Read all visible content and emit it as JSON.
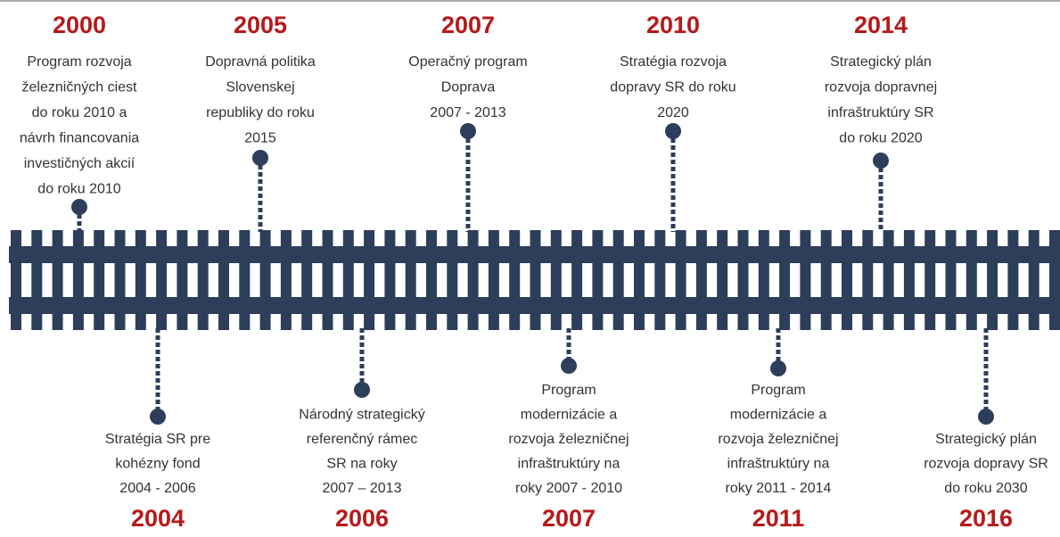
{
  "top": [
    {
      "year": "2000",
      "lines": [
        "Program rozvoja",
        "železničných ciest",
        "do roku 2010 a",
        "návrh financovania",
        "investičných akcií",
        "do roku 2010"
      ]
    },
    {
      "year": "2005",
      "lines": [
        "Dopravná politika",
        "Slovenskej",
        "republiky do roku",
        "2015"
      ]
    },
    {
      "year": "2007",
      "lines": [
        "Operačný program",
        "Doprava",
        "2007 - 2013"
      ]
    },
    {
      "year": "2010",
      "lines": [
        "Stratégia rozvoja",
        "dopravy SR do roku",
        "2020"
      ]
    },
    {
      "year": "2014",
      "lines": [
        "Strategický plán",
        "rozvoja dopravnej",
        "infraštruktúry SR",
        "do roku 2020"
      ]
    }
  ],
  "bottom": [
    {
      "year": "2004",
      "lines": [
        "Stratégia SR pre",
        "kohézny fond",
        "2004 - 2006"
      ]
    },
    {
      "year": "2006",
      "lines": [
        "Národný strategický",
        "referenčný rámec",
        "SR na roky",
        "2007 – 2013"
      ]
    },
    {
      "year": "2007",
      "lines": [
        "Program",
        "modernizácie a",
        "rozvoja železničnej",
        "infraštruktúry na",
        "roky 2007 - 2010"
      ]
    },
    {
      "year": "2011",
      "lines": [
        "Program",
        "modernizácie a",
        "rozvoja železničnej",
        "infraštruktúry na",
        "roky 2011 - 2014"
      ]
    },
    {
      "year": "2016",
      "lines": [
        "Strategický plán",
        "rozvoja dopravy SR",
        "do roku 2030"
      ]
    }
  ]
}
